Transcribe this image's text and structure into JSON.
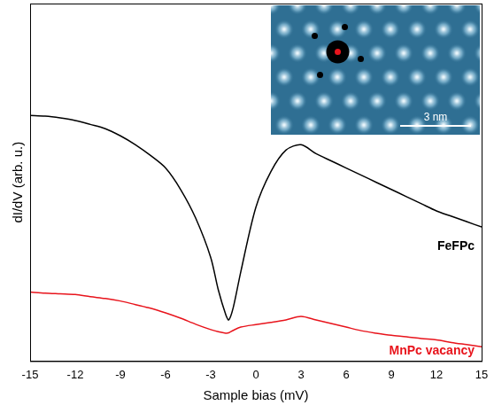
{
  "chart_data": {
    "type": "line",
    "x_label": "Sample bias (mV)",
    "y_label": "dI/dV (arb. u.)",
    "x": [
      -15,
      -14,
      -13,
      -12,
      -11,
      -10,
      -9,
      -8,
      -7,
      -6,
      -5,
      -4,
      -3,
      -2.5,
      -2,
      -1.8,
      -1.5,
      -1,
      0,
      1,
      2,
      3,
      4,
      5,
      6,
      7,
      8,
      9,
      10,
      11,
      12,
      13,
      14,
      15
    ],
    "series": [
      {
        "name": "FeFPc",
        "color": "#000000",
        "values": [
          68.7,
          68.5,
          68,
          67.3,
          66.2,
          65,
          63,
          60.5,
          57.5,
          54,
          48,
          40,
          29,
          20,
          13,
          11.5,
          15,
          25,
          43,
          53,
          59,
          60.5,
          58,
          56,
          54,
          52,
          50,
          48,
          46,
          44,
          42,
          40.5,
          39,
          37.5
        ]
      },
      {
        "name": "MnPc vacancy",
        "color": "#e8141c",
        "values": [
          19.3,
          19,
          18.8,
          18.6,
          18,
          17.5,
          16.8,
          15.8,
          14.8,
          13.5,
          12,
          10.3,
          8.8,
          8.2,
          7.8,
          7.9,
          8.6,
          9.5,
          10.2,
          10.8,
          11.5,
          12.5,
          11.5,
          10.5,
          9.5,
          8.5,
          7.8,
          7.2,
          6.8,
          6.3,
          5.9,
          5.2,
          4.6,
          4
        ]
      }
    ],
    "xlim": [
      -15,
      15
    ],
    "xticks": [
      -15,
      -12,
      -9,
      -6,
      -3,
      0,
      3,
      6,
      9,
      12,
      15
    ],
    "ylim": [
      0,
      100
    ],
    "tick_labels": "x",
    "grid": false,
    "inset": {
      "scale_bar_label": "3 nm"
    }
  }
}
